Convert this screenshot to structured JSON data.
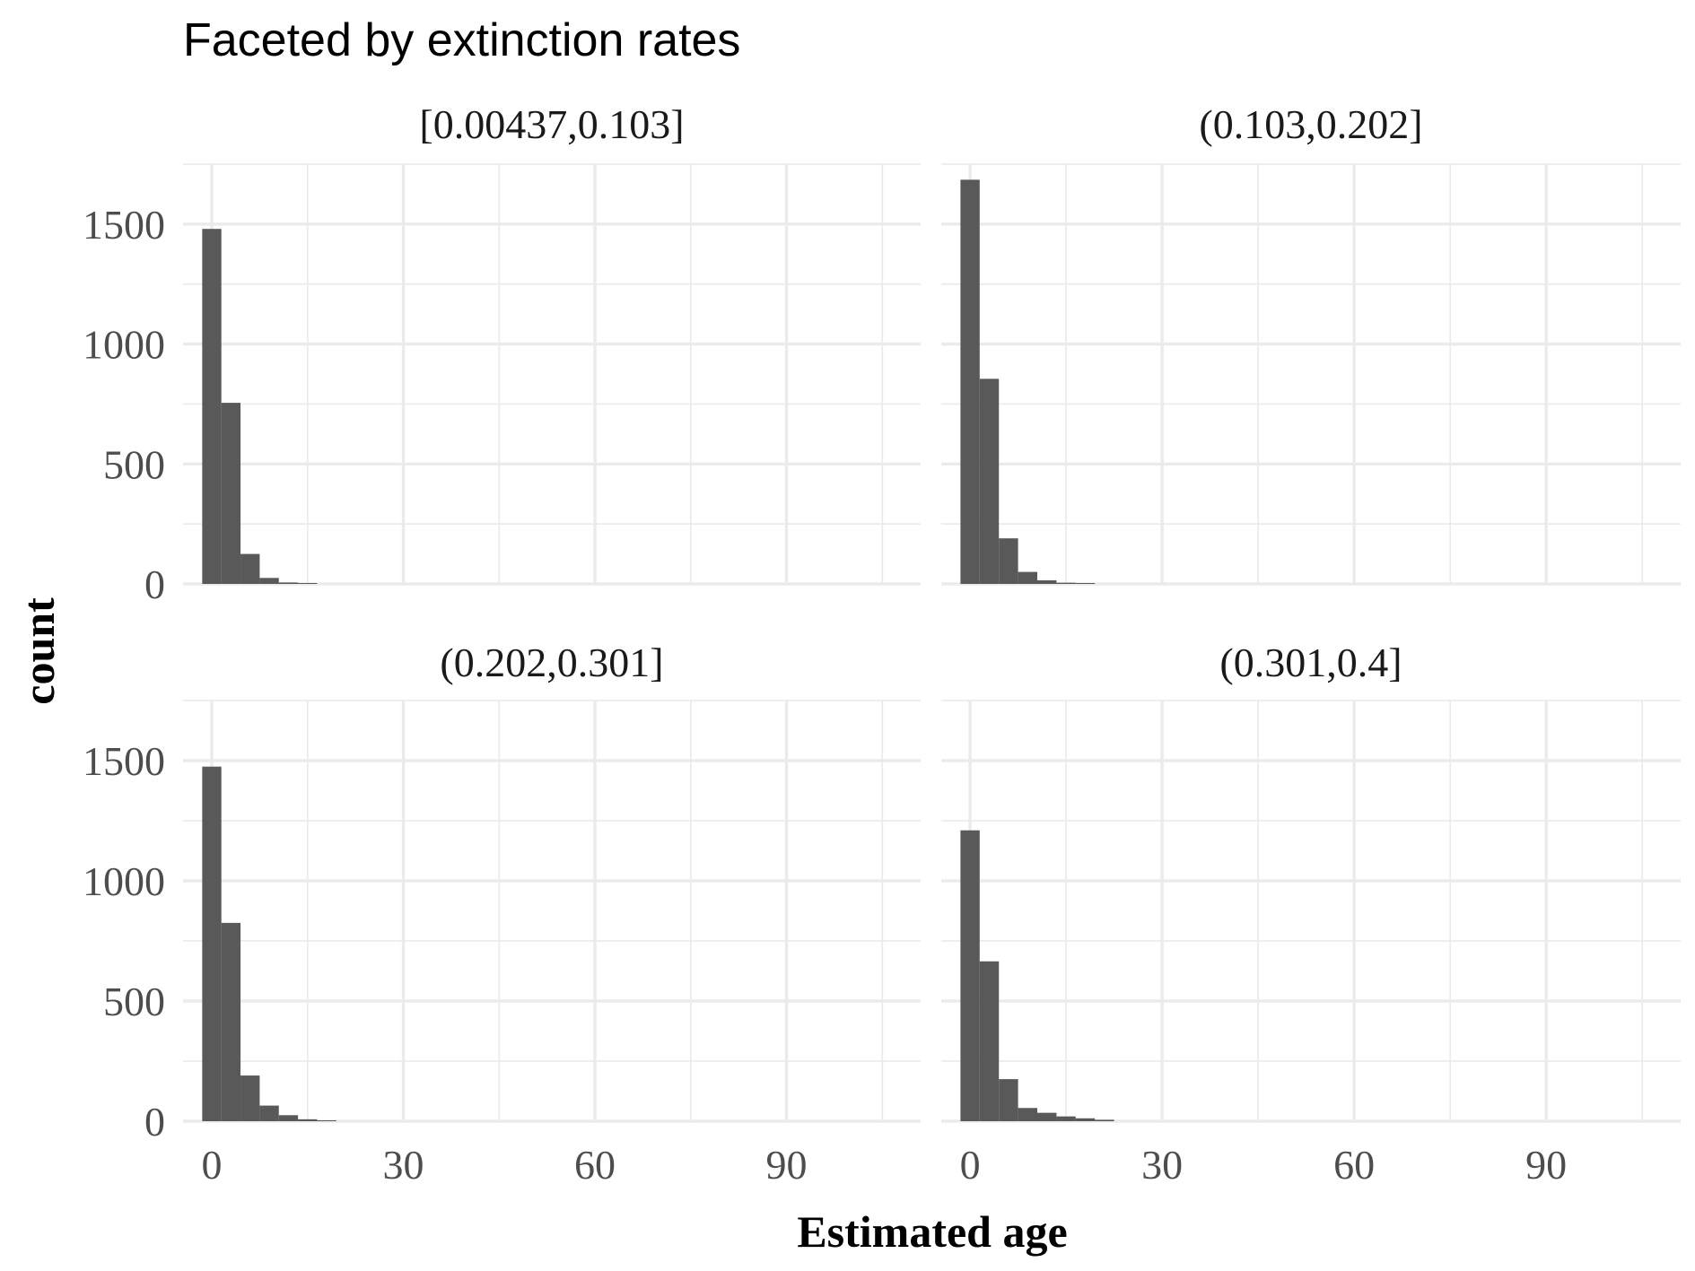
{
  "chart_data": {
    "type": "bar",
    "title": "Faceted by extinction rates",
    "xlabel": "Estimated age",
    "ylabel": "count",
    "xlim": [
      -4.5,
      111
    ],
    "ylim": [
      0,
      1750
    ],
    "x_ticks": [
      0,
      30,
      60,
      90
    ],
    "y_ticks": [
      0,
      500,
      1000,
      1500
    ],
    "grid": true,
    "bin_width": 3,
    "bin_start": -1.5,
    "bar_color": "#595959",
    "facets": [
      {
        "label": "[0.00437,0.103]",
        "values": [
          1480,
          755,
          125,
          25,
          6,
          2
        ]
      },
      {
        "label": "(0.103,0.202]",
        "values": [
          1685,
          855,
          190,
          50,
          15,
          5,
          2
        ]
      },
      {
        "label": "(0.202,0.301]",
        "values": [
          1475,
          825,
          190,
          65,
          25,
          8,
          3
        ]
      },
      {
        "label": "(0.301,0.4]",
        "values": [
          1210,
          665,
          175,
          55,
          35,
          20,
          12,
          6
        ]
      }
    ]
  }
}
